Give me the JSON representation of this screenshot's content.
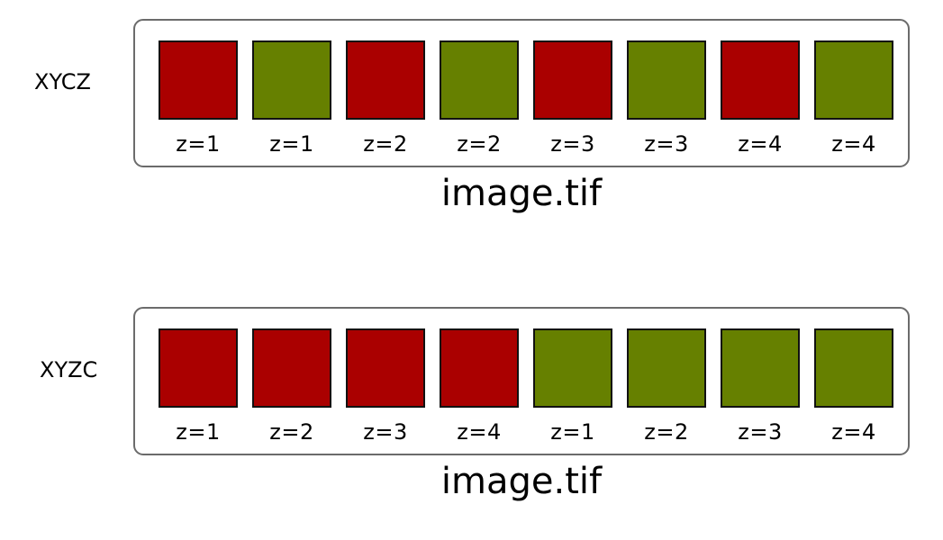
{
  "colors": {
    "channel_red": "#aa0000",
    "channel_green": "#668000",
    "frame_border": "#6b6b6b"
  },
  "diagrams": [
    {
      "order": "XYCZ",
      "filename": "image.tif",
      "slices": [
        {
          "channel": "red",
          "label": "z=1"
        },
        {
          "channel": "green",
          "label": "z=1"
        },
        {
          "channel": "red",
          "label": "z=2"
        },
        {
          "channel": "green",
          "label": "z=2"
        },
        {
          "channel": "red",
          "label": "z=3"
        },
        {
          "channel": "green",
          "label": "z=3"
        },
        {
          "channel": "red",
          "label": "z=4"
        },
        {
          "channel": "green",
          "label": "z=4"
        }
      ]
    },
    {
      "order": "XYZC",
      "filename": "image.tif",
      "slices": [
        {
          "channel": "red",
          "label": "z=1"
        },
        {
          "channel": "red",
          "label": "z=2"
        },
        {
          "channel": "red",
          "label": "z=3"
        },
        {
          "channel": "red",
          "label": "z=4"
        },
        {
          "channel": "green",
          "label": "z=1"
        },
        {
          "channel": "green",
          "label": "z=2"
        },
        {
          "channel": "green",
          "label": "z=3"
        },
        {
          "channel": "green",
          "label": "z=4"
        }
      ]
    }
  ]
}
